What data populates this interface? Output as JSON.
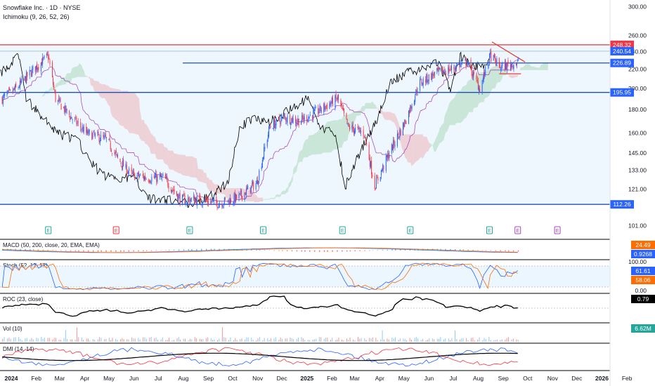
{
  "header": {
    "title": "Snowflake Inc. · 1D · NYSE",
    "indicator": "Ichimoku (9, 26, 52, 26)"
  },
  "colors": {
    "up": "#2962ff",
    "down": "#f23645",
    "level": "#1e4fc2",
    "resistance": "#e53935",
    "cloud_bull": "#4caf50",
    "cloud_bear": "#ef5350",
    "lagging": "#000000",
    "base_line": "#9c27b0",
    "zone": "#e3f2fd"
  },
  "chart_data": {
    "type": "candlestick",
    "title": "Snowflake Inc. · 1D · NYSE",
    "y_scale": "log",
    "ylim": [
      96,
      305
    ],
    "y_ticks": [
      101.0,
      121.0,
      133.0,
      145.0,
      160.0,
      180.0,
      200.0,
      220.0,
      240.0,
      260.0,
      300.0
    ],
    "x_ticks": [
      "2024",
      "Feb",
      "Mar",
      "Apr",
      "May",
      "Jun",
      "Jul",
      "Aug",
      "Sep",
      "Oct",
      "Nov",
      "Dec",
      "2025",
      "Feb",
      "Mar",
      "Apr",
      "May",
      "Jun",
      "Jul",
      "Aug",
      "Sep",
      "Oct",
      "Nov",
      "Dec",
      "2026",
      "Feb"
    ],
    "price_path": [
      {
        "date": "2024-01-02",
        "close": 190
      },
      {
        "date": "2024-01-20",
        "close": 200
      },
      {
        "date": "2024-02-10",
        "close": 220
      },
      {
        "date": "2024-02-28",
        "close": 235
      },
      {
        "date": "2024-03-08",
        "close": 190
      },
      {
        "date": "2024-03-25",
        "close": 175
      },
      {
        "date": "2024-04-15",
        "close": 160
      },
      {
        "date": "2024-05-10",
        "close": 155
      },
      {
        "date": "2024-05-25",
        "close": 140
      },
      {
        "date": "2024-06-10",
        "close": 130
      },
      {
        "date": "2024-07-01",
        "close": 128
      },
      {
        "date": "2024-07-20",
        "close": 128
      },
      {
        "date": "2024-08-10",
        "close": 115
      },
      {
        "date": "2024-09-01",
        "close": 115
      },
      {
        "date": "2024-09-25",
        "close": 113
      },
      {
        "date": "2024-10-20",
        "close": 116
      },
      {
        "date": "2024-11-12",
        "close": 125
      },
      {
        "date": "2024-11-28",
        "close": 165
      },
      {
        "date": "2024-12-15",
        "close": 173
      },
      {
        "date": "2025-01-05",
        "close": 170
      },
      {
        "date": "2025-01-30",
        "close": 180
      },
      {
        "date": "2025-02-20",
        "close": 190
      },
      {
        "date": "2025-03-05",
        "close": 165
      },
      {
        "date": "2025-03-25",
        "close": 160
      },
      {
        "date": "2025-04-07",
        "close": 123
      },
      {
        "date": "2025-04-25",
        "close": 145
      },
      {
        "date": "2025-05-15",
        "close": 170
      },
      {
        "date": "2025-06-01",
        "close": 205
      },
      {
        "date": "2025-06-20",
        "close": 215
      },
      {
        "date": "2025-07-10",
        "close": 220
      },
      {
        "date": "2025-07-30",
        "close": 228
      },
      {
        "date": "2025-08-15",
        "close": 200
      },
      {
        "date": "2025-08-28",
        "close": 235
      },
      {
        "date": "2025-09-10",
        "close": 222
      },
      {
        "date": "2025-10-02",
        "close": 228
      }
    ],
    "horizontal_levels": [
      {
        "value": 248.32,
        "label": "248.32",
        "color": "#f23645"
      },
      {
        "value": 240.54,
        "label": "240.54",
        "color": "#2962ff"
      },
      {
        "value": 226.89,
        "label": "226.89",
        "color": "#2962ff"
      },
      {
        "value": 195.95,
        "label": "195.95",
        "color": "#2962ff"
      },
      {
        "value": 112.26,
        "label": "112.26",
        "color": "#2962ff"
      }
    ],
    "earnings_markers": [
      "2024-02-28",
      "2024-05-22",
      "2024-08-21",
      "2024-11-20",
      "2025-02-26",
      "2025-05-21",
      "2025-08-27",
      "2025-10-01",
      "2025-11-19"
    ],
    "ichimoku": {
      "params": [
        9,
        26,
        52,
        26
      ]
    },
    "panels": [
      {
        "name": "MACD (50, 200, close, 20, EMA, EMA)",
        "last_values": [
          "24.49",
          "0.9268"
        ]
      },
      {
        "name": "Stoch (52, 12, 12)",
        "ylim": [
          0,
          100
        ],
        "y_ticks": [
          0.0,
          100.0
        ],
        "last_values": [
          "61.61",
          "58.06"
        ]
      },
      {
        "name": "ROC (23, close)",
        "last_values": [
          "0.79"
        ]
      },
      {
        "name": "Vol (10)",
        "last_values": [
          "6.62M"
        ]
      },
      {
        "name": "DMI (14, 14)",
        "last_values": []
      }
    ]
  }
}
